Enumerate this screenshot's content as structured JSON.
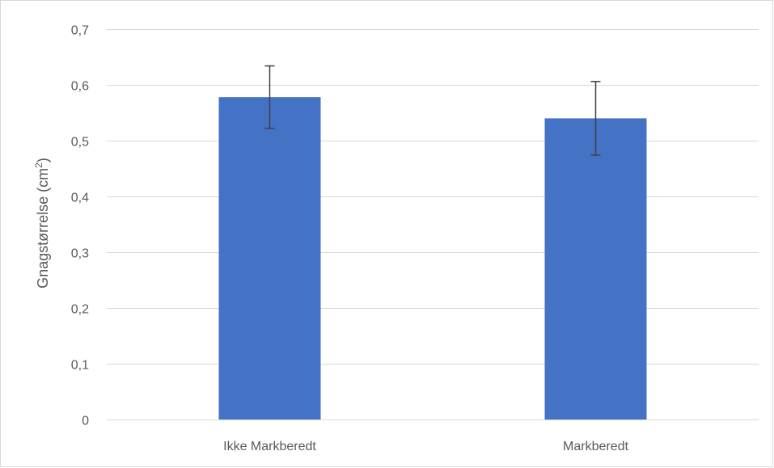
{
  "chart_data": {
    "type": "bar",
    "categories": [
      "Ikke Markberedt",
      "Markberedt"
    ],
    "series": [
      {
        "values": [
          0.578,
          0.54
        ],
        "error_plus": [
          0.056,
          0.066
        ],
        "error_minus": [
          0.056,
          0.066
        ],
        "color": "#4472c4"
      }
    ],
    "ylabel": "Gnagstørrelse (cm",
    "ylabel_superscript": "2",
    "ylabel_suffix": ")",
    "ylim": [
      0,
      0.7
    ],
    "yticks": [
      0,
      0.1,
      0.2,
      0.3,
      0.4,
      0.5,
      0.6,
      0.7
    ],
    "ytick_labels": [
      "0",
      "0,1",
      "0,2",
      "0,3",
      "0,4",
      "0,5",
      "0,6",
      "0,7"
    ],
    "grid": true,
    "legend": "none",
    "gridline_color": "#d9d9d9",
    "error_bar_color": "#404040"
  }
}
